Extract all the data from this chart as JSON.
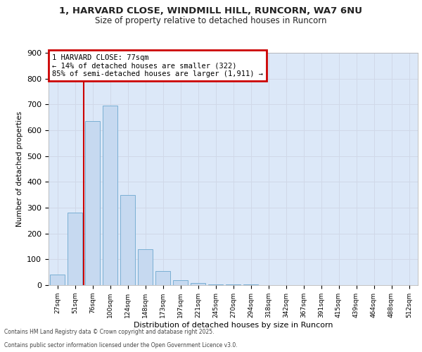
{
  "title_line1": "1, HARVARD CLOSE, WINDMILL HILL, RUNCORN, WA7 6NU",
  "title_line2": "Size of property relative to detached houses in Runcorn",
  "xlabel": "Distribution of detached houses by size in Runcorn",
  "ylabel": "Number of detached properties",
  "categories": [
    "27sqm",
    "51sqm",
    "76sqm",
    "100sqm",
    "124sqm",
    "148sqm",
    "173sqm",
    "197sqm",
    "221sqm",
    "245sqm",
    "270sqm",
    "294sqm",
    "318sqm",
    "342sqm",
    "367sqm",
    "391sqm",
    "415sqm",
    "439sqm",
    "464sqm",
    "488sqm",
    "512sqm"
  ],
  "values": [
    40,
    280,
    635,
    695,
    350,
    140,
    55,
    18,
    8,
    4,
    3,
    2,
    1,
    1,
    1,
    0,
    0,
    0,
    0,
    0,
    0
  ],
  "bar_color": "#c6d9f0",
  "bar_edge_color": "#7aafd4",
  "annotation_box_edge_color": "#cc0000",
  "vline_color": "#cc0000",
  "grid_color": "#d0d8e8",
  "background_color": "#dce8f8",
  "footnote_line1": "Contains HM Land Registry data © Crown copyright and database right 2025.",
  "footnote_line2": "Contains public sector information licensed under the Open Government Licence v3.0.",
  "ylim_max": 900,
  "yticks": [
    0,
    100,
    200,
    300,
    400,
    500,
    600,
    700,
    800,
    900
  ],
  "vline_x": 1.5,
  "ann_line1": "1 HARVARD CLOSE: 77sqm",
  "ann_line2": "← 14% of detached houses are smaller (322)",
  "ann_line3": "85% of semi-detached houses are larger (1,911) →"
}
